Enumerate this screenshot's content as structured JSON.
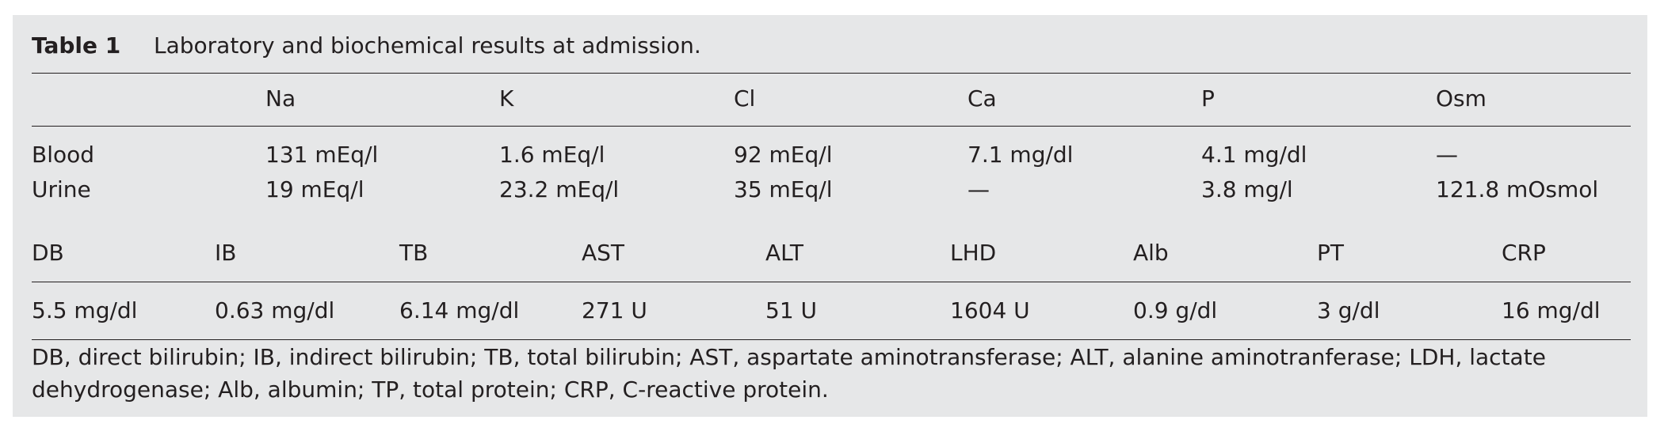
{
  "title": {
    "label": "Table 1",
    "caption": "Laboratory and biochemical results at admission."
  },
  "table1": {
    "header": [
      "Na",
      "K",
      "Cl",
      "Ca",
      "P",
      "Osm"
    ],
    "rows": [
      {
        "label": "Blood",
        "cells": [
          "131 mEq/l",
          "1.6 mEq/l",
          "92 mEq/l",
          "7.1 mg/dl",
          "4.1 mg/dl",
          "—"
        ]
      },
      {
        "label": "Urine",
        "cells": [
          "19 mEq/l",
          "23.2 mEq/l",
          "35 mEq/l",
          "—",
          "3.8 mg/l",
          "121.8 mOsmol"
        ]
      }
    ]
  },
  "table2": {
    "header": [
      "DB",
      "IB",
      "TB",
      "AST",
      "ALT",
      "LHD",
      "Alb",
      "PT",
      "CRP"
    ],
    "values": [
      "5.5 mg/dl",
      "0.63 mg/dl",
      "6.14 mg/dl",
      "271 U",
      "51 U",
      "1604 U",
      "0.9 g/dl",
      "3 g/dl",
      "16 mg/dl"
    ]
  },
  "footnote": "DB, direct bilirubin; IB, indirect bilirubin; TB, total bilirubin; AST, aspartate aminotransferase; ALT, alanine aminotranferase; LDH, lactate dehydrogenase; Alb, albumin; TP, total protein; CRP, C-reactive protein."
}
